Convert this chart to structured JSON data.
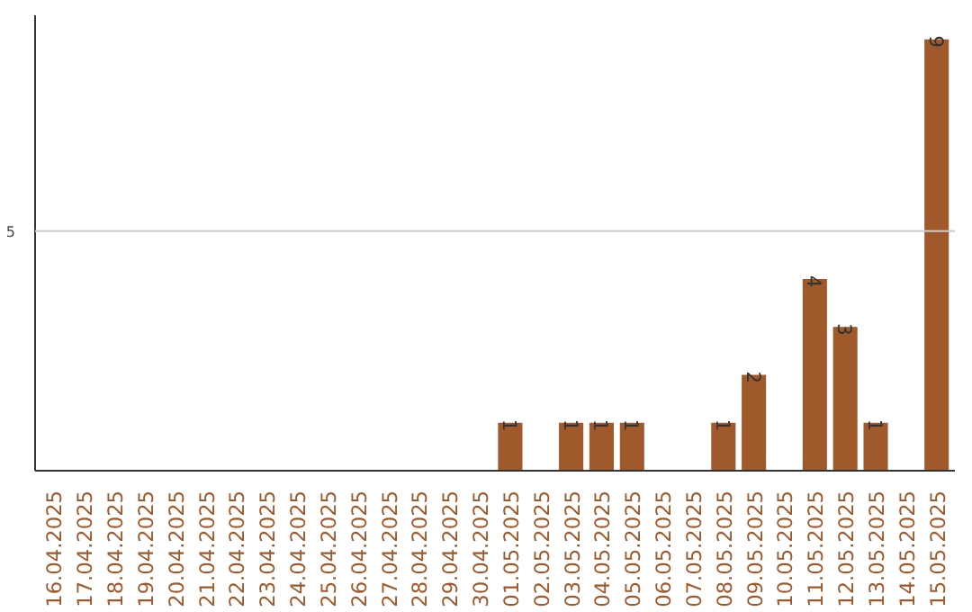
{
  "chart_data": {
    "type": "bar",
    "categories": [
      "16.04.2025",
      "17.04.2025",
      "18.04.2025",
      "19.04.2025",
      "20.04.2025",
      "21.04.2025",
      "22.04.2025",
      "23.04.2025",
      "24.04.2025",
      "25.04.2025",
      "26.04.2025",
      "27.04.2025",
      "28.04.2025",
      "29.04.2025",
      "30.04.2025",
      "01.05.2025",
      "02.05.2025",
      "03.05.2025",
      "04.05.2025",
      "05.05.2025",
      "06.05.2025",
      "07.05.2025",
      "08.05.2025",
      "09.05.2025",
      "10.05.2025",
      "11.05.2025",
      "12.05.2025",
      "13.05.2025",
      "14.05.2025",
      "15.05.2025"
    ],
    "values": [
      null,
      null,
      null,
      null,
      null,
      null,
      null,
      null,
      null,
      null,
      null,
      null,
      null,
      null,
      null,
      1,
      null,
      1,
      1,
      1,
      null,
      null,
      1,
      2,
      null,
      4,
      3,
      1,
      null,
      9
    ],
    "data_labels": true,
    "color": "#a0592b",
    "ylim": [
      0,
      9.5
    ],
    "ref_lines": [
      {
        "axis": "y",
        "value": 5,
        "label": "5",
        "color": "#cccccc"
      }
    ]
  }
}
